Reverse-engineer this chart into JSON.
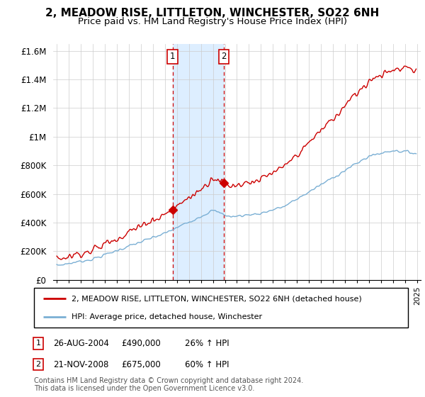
{
  "title": "2, MEADOW RISE, LITTLETON, WINCHESTER, SO22 6NH",
  "subtitle": "Price paid vs. HM Land Registry's House Price Index (HPI)",
  "ylim": [
    0,
    1650000
  ],
  "yticks": [
    0,
    200000,
    400000,
    600000,
    800000,
    1000000,
    1200000,
    1400000,
    1600000
  ],
  "ytick_labels": [
    "£0",
    "£200K",
    "£400K",
    "£600K",
    "£800K",
    "£1M",
    "£1.2M",
    "£1.4M",
    "£1.6M"
  ],
  "sale1_date": 2004.65,
  "sale1_price": 490000,
  "sale2_date": 2008.9,
  "sale2_price": 675000,
  "shade_color": "#ddeeff",
  "line_red": "#cc0000",
  "line_blue": "#7aafd4",
  "legend_line1": "2, MEADOW RISE, LITTLETON, WINCHESTER, SO22 6NH (detached house)",
  "legend_line2": "HPI: Average price, detached house, Winchester",
  "footer": "Contains HM Land Registry data © Crown copyright and database right 2024.\nThis data is licensed under the Open Government Licence v3.0.",
  "title_fontsize": 11,
  "subtitle_fontsize": 9.5
}
